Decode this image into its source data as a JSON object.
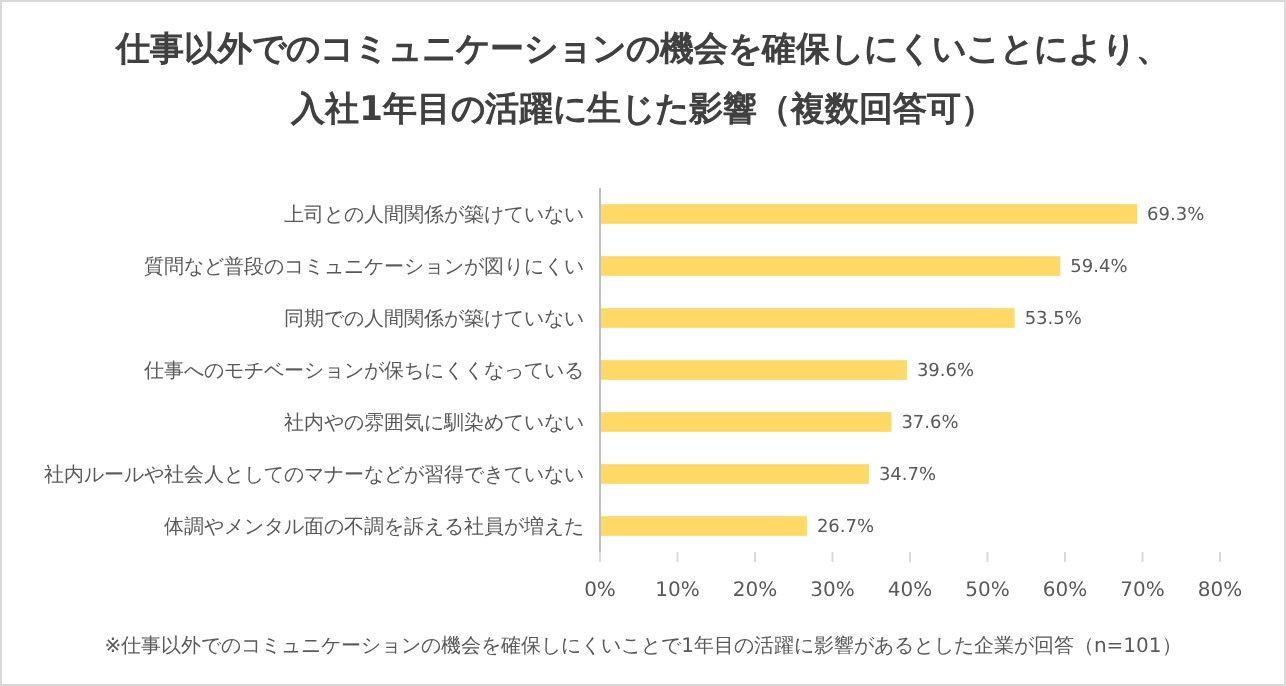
{
  "chart_data": {
    "type": "bar",
    "orientation": "horizontal",
    "title": "仕事以外でのコミュニケーションの機会を確保しにくいことにより、",
    "subtitle": "入社1年目の活躍に生じた影響（複数回答可）",
    "categories": [
      "上司との人間関係が築けていない",
      "質問など普段のコミュニケーションが図りにくい",
      "同期での人間関係が築けていない",
      "仕事へのモチベーションが保ちにくくなっている",
      "社内やの雰囲気に馴染めていない",
      "社内ルールや社会人としてのマナーなどが習得できていない",
      "体調やメンタル面の不調を訴える社員が増えた"
    ],
    "values": [
      69.3,
      59.4,
      53.5,
      39.6,
      37.6,
      34.7,
      26.7
    ],
    "value_labels": [
      "69.3%",
      "59.4%",
      "53.5%",
      "39.6%",
      "37.6%",
      "34.7%",
      "26.7%"
    ],
    "color": "#ffd966",
    "xlim": [
      0,
      80
    ],
    "xticks": [
      {
        "value": 0,
        "label": "0%"
      },
      {
        "value": 10,
        "label": "10%"
      },
      {
        "value": 20,
        "label": "20%"
      },
      {
        "value": 30,
        "label": "30%"
      },
      {
        "value": 40,
        "label": "40%"
      },
      {
        "value": 50,
        "label": "50%"
      },
      {
        "value": 60,
        "label": "60%"
      },
      {
        "value": 70,
        "label": "70%"
      },
      {
        "value": 80,
        "label": "80%"
      }
    ],
    "grid": false,
    "annotations": [
      "※仕事以外でのコミュニケーションの機会を確保しにくいことで1年目の活躍に影響があるとした企業が回答（n=101）"
    ]
  }
}
